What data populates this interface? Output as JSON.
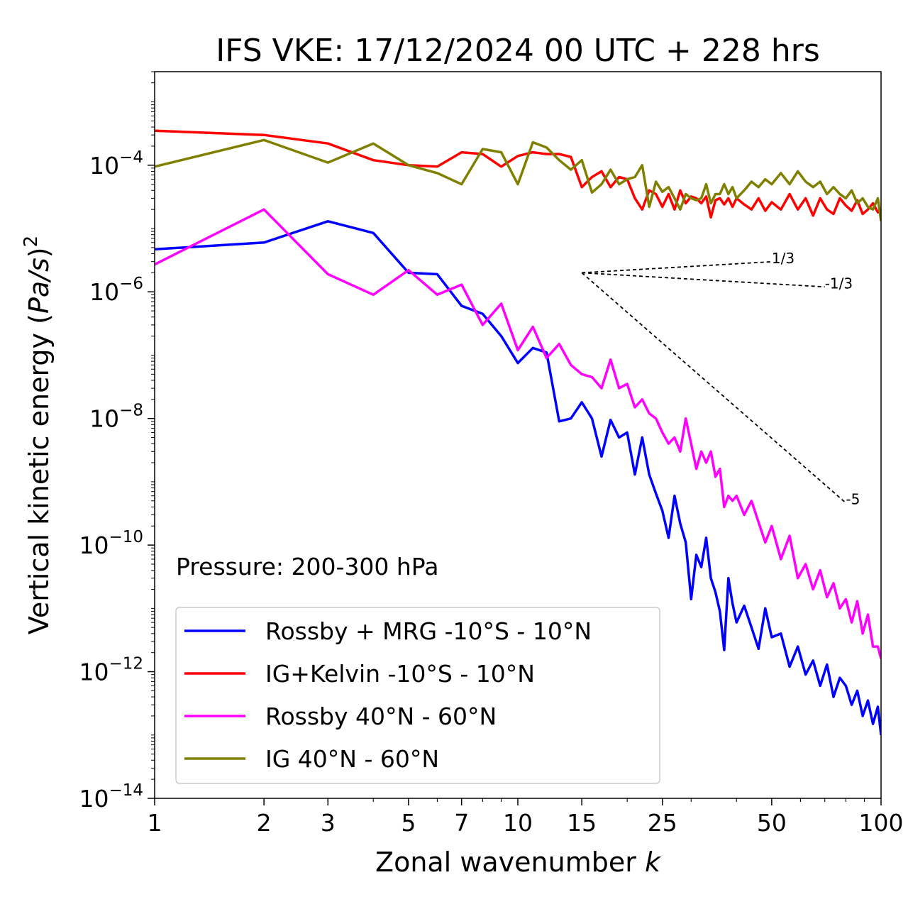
{
  "chart_data": {
    "type": "line",
    "title": "IFS VKE: 17/12/2024 00 UTC + 228 hrs",
    "xlabel_text": "Zonal wavenumber ",
    "xlabel_var": "k",
    "ylabel_text": "Vertical kinetic energy (",
    "ylabel_var": "Pa/s",
    "ylabel_close": ")",
    "ylabel_exp": "2",
    "xscale": "log",
    "yscale": "log",
    "xlim": [
      1,
      100
    ],
    "ylim": [
      1e-14,
      0.003
    ],
    "x_ticks": [
      1,
      2,
      3,
      5,
      7,
      10,
      15,
      25,
      50,
      100
    ],
    "x_tick_labels": [
      "1",
      "2",
      "3",
      "5",
      "7",
      "10",
      "15",
      "25",
      "50",
      "100"
    ],
    "y_ticks": [
      {
        "value": 0.0001,
        "base": "10",
        "exp": "−4"
      },
      {
        "value": 1e-06,
        "base": "10",
        "exp": "−6"
      },
      {
        "value": 1e-08,
        "base": "10",
        "exp": "−8"
      },
      {
        "value": 1e-10,
        "base": "10",
        "exp": "−10"
      },
      {
        "value": 1e-12,
        "base": "10",
        "exp": "−12"
      },
      {
        "value": 1e-14,
        "base": "10",
        "exp": "−14"
      }
    ],
    "annotation": "Pressure: 200-300 hPa",
    "legend_position": "lower-left",
    "series": [
      {
        "name": "Rossby + MRG -10°S - 10°N",
        "color": "#0000ff",
        "x": [
          1,
          2,
          3,
          4,
          5,
          6,
          7,
          8,
          9,
          10,
          11,
          12,
          13,
          14,
          15,
          16,
          17,
          18,
          19,
          20,
          21,
          22,
          23,
          24,
          25,
          26,
          27,
          28,
          29,
          30,
          31,
          32,
          33,
          34,
          35,
          36,
          37,
          38,
          39,
          40,
          42,
          44,
          46,
          48,
          50,
          53,
          56,
          59,
          62,
          65,
          68,
          71,
          74,
          77,
          80,
          83,
          86,
          89,
          92,
          95,
          98,
          100
        ],
        "y": [
          4.7e-06,
          6e-06,
          1.3e-05,
          8.5e-06,
          2e-06,
          1.9e-06,
          6e-07,
          4.5e-07,
          2e-07,
          7.5e-08,
          1.3e-07,
          1.1e-07,
          9e-09,
          1e-08,
          1.8e-08,
          1e-08,
          2.5e-09,
          9.5e-09,
          5e-09,
          6e-09,
          1.3e-09,
          5e-09,
          1.3e-09,
          6.5e-10,
          3.5e-10,
          1.3e-10,
          6e-10,
          2.2e-10,
          1.1e-10,
          1.4e-11,
          7e-11,
          4.5e-11,
          1.3e-10,
          3e-11,
          1.8e-11,
          9e-12,
          2.2e-12,
          3e-11,
          1.2e-11,
          6e-12,
          1.1e-11,
          5e-12,
          2.3e-12,
          1e-11,
          3.5e-12,
          4e-12,
          1.2e-12,
          2.5e-12,
          9e-13,
          1.5e-12,
          6e-13,
          1.3e-12,
          4e-13,
          8e-13,
          6e-13,
          3e-13,
          5e-13,
          2e-13,
          3.5e-13,
          1.5e-13,
          2.8e-13,
          1e-13
        ]
      },
      {
        "name": "IG+Kelvin -10°S - 10°N",
        "color": "#ff0000",
        "x": [
          1,
          2,
          3,
          4,
          5,
          6,
          7,
          8,
          9,
          10,
          11,
          12,
          13,
          14,
          15,
          16,
          17,
          18,
          19,
          20,
          21,
          22,
          23,
          24,
          25,
          26,
          27,
          28,
          29,
          30,
          31,
          32,
          33,
          34,
          35,
          36,
          37,
          38,
          39,
          40,
          42,
          44,
          46,
          48,
          50,
          53,
          56,
          59,
          62,
          65,
          68,
          71,
          74,
          77,
          80,
          83,
          86,
          89,
          92,
          95,
          98,
          100
        ],
        "y": [
          0.00035,
          0.0003,
          0.00022,
          0.00012,
          0.0001,
          9.5e-05,
          0.00016,
          0.00015,
          9.5e-05,
          0.00014,
          0.00016,
          0.00015,
          0.00015,
          0.000135,
          4.5e-05,
          6.5e-05,
          8e-05,
          4.5e-05,
          6.5e-05,
          6e-05,
          3e-05,
          2e-05,
          4e-05,
          3.5e-05,
          2.2e-05,
          3.5e-05,
          2e-05,
          4e-05,
          2.5e-05,
          3.2e-05,
          3e-05,
          2.5e-05,
          3.2e-05,
          1.5e-05,
          2.8e-05,
          3e-05,
          2.4e-05,
          3e-05,
          2.2e-05,
          3e-05,
          2.4e-05,
          2e-05,
          3e-05,
          1.9e-05,
          2.6e-05,
          2e-05,
          3.5e-05,
          2e-05,
          3e-05,
          1.6e-05,
          3e-05,
          2e-05,
          1.7e-05,
          3e-05,
          2.3e-05,
          1.9e-05,
          2.8e-05,
          1.7e-05,
          2e-05,
          2.5e-05,
          1.8e-05,
          2e-05
        ]
      },
      {
        "name": "Rossby 40°N - 60°N",
        "color": "#ff00ff",
        "x": [
          1,
          2,
          3,
          4,
          5,
          6,
          7,
          8,
          9,
          10,
          11,
          12,
          13,
          14,
          15,
          16,
          17,
          18,
          19,
          20,
          21,
          22,
          23,
          24,
          25,
          26,
          27,
          28,
          29,
          30,
          31,
          32,
          33,
          34,
          35,
          36,
          37,
          38,
          39,
          40,
          42,
          44,
          46,
          48,
          50,
          53,
          56,
          59,
          62,
          65,
          68,
          71,
          74,
          77,
          80,
          83,
          86,
          89,
          92,
          95,
          98,
          100
        ],
        "y": [
          2.7e-06,
          2e-05,
          1.9e-06,
          9e-07,
          2.2e-06,
          9e-07,
          1.3e-06,
          3e-07,
          6.5e-07,
          1.2e-07,
          2.8e-07,
          9e-08,
          1.5e-07,
          7e-08,
          5e-08,
          4.5e-08,
          3e-08,
          8.5e-08,
          3e-08,
          3.5e-08,
          1.5e-08,
          2e-08,
          1.2e-08,
          1e-08,
          6e-09,
          4e-09,
          5e-09,
          3e-09,
          1e-08,
          4e-09,
          1.6e-09,
          3e-09,
          2e-09,
          3e-09,
          1.2e-09,
          1.6e-09,
          4e-10,
          6e-10,
          5e-10,
          6e-10,
          3e-10,
          5e-10,
          2.3e-10,
          1.1e-10,
          2e-10,
          6e-11,
          1.4e-10,
          3e-11,
          5e-11,
          2e-11,
          4e-11,
          1.5e-11,
          2.5e-11,
          1e-11,
          1.4e-11,
          6e-12,
          1.3e-11,
          4e-12,
          8e-12,
          2.5e-12,
          2.5e-12,
          1.6e-12
        ]
      },
      {
        "name": "IG 40°N - 60°N",
        "color": "#808000",
        "x": [
          1,
          2,
          3,
          4,
          5,
          6,
          7,
          8,
          9,
          10,
          11,
          12,
          13,
          14,
          15,
          16,
          17,
          18,
          19,
          20,
          21,
          22,
          23,
          24,
          25,
          26,
          27,
          28,
          29,
          30,
          31,
          32,
          33,
          34,
          35,
          36,
          37,
          38,
          39,
          40,
          42,
          44,
          46,
          48,
          50,
          53,
          56,
          59,
          62,
          65,
          68,
          71,
          74,
          77,
          80,
          83,
          86,
          89,
          92,
          95,
          98,
          100
        ],
        "y": [
          9.5e-05,
          0.00025,
          0.00011,
          0.00022,
          0.0001,
          7.5e-05,
          5e-05,
          0.00018,
          0.00016,
          5e-05,
          0.00023,
          0.00019,
          0.00012,
          8.5e-05,
          0.00012,
          3.7e-05,
          5e-05,
          8.5e-05,
          5e-05,
          6e-05,
          6.5e-05,
          0.0001,
          2.2e-05,
          5.5e-05,
          3.8e-05,
          4.5e-05,
          3e-05,
          2e-05,
          3.5e-05,
          3e-05,
          2.8e-05,
          3e-05,
          5e-05,
          2.5e-05,
          3.5e-05,
          3.5e-05,
          5e-05,
          3.5e-05,
          4.5e-05,
          3e-05,
          4e-05,
          5.5e-05,
          4.5e-05,
          6e-05,
          5e-05,
          7.5e-05,
          5e-05,
          8e-05,
          5.5e-05,
          4.5e-05,
          5.5e-05,
          3.5e-05,
          4.5e-05,
          3.5e-05,
          3e-05,
          4e-05,
          2.5e-05,
          3e-05,
          2.2e-05,
          2e-05,
          3e-05,
          1.3e-05
        ]
      }
    ],
    "reference_lines": [
      {
        "label": "1/3",
        "slope": 0.3333,
        "x": [
          15,
          50
        ],
        "y0": 2e-06
      },
      {
        "label": "-1/3",
        "slope": -0.3333,
        "x": [
          15,
          70
        ],
        "y0": 2e-06
      },
      {
        "label": "-5",
        "slope": -5,
        "x": [
          15,
          80
        ],
        "y0": 2e-06
      }
    ]
  }
}
